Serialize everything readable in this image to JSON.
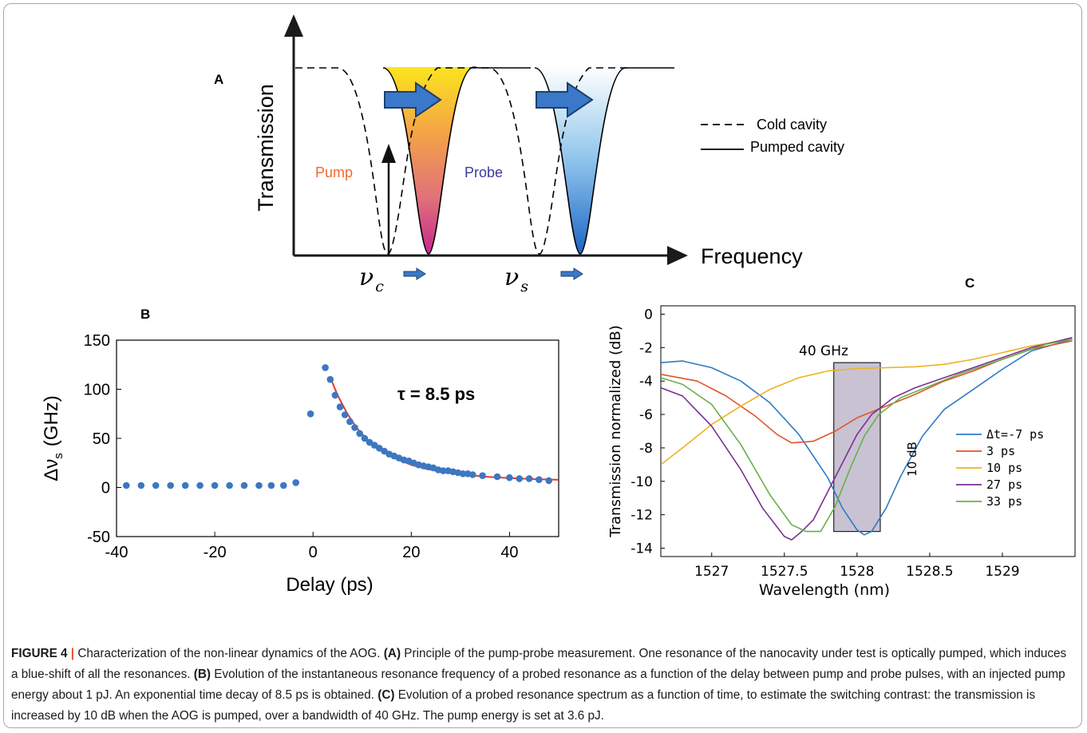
{
  "panel_a": {
    "label": "A",
    "ylabel": "Transmission",
    "xlabel": "Frequency",
    "pump_label": "Pump",
    "probe_label": "Probe",
    "nu_c_symbol": "ν",
    "nu_c_sub": "c",
    "nu_s_symbol": "ν",
    "nu_s_sub": "s",
    "legend": [
      {
        "label": "Cold cavity",
        "style": "dashed"
      },
      {
        "label": "Pumped cavity",
        "style": "solid"
      }
    ],
    "colors": {
      "pump_text": "#f26a2e",
      "probe_text": "#3a3aa0",
      "arrow": "#3a78c9"
    }
  },
  "chart_data": [
    {
      "panel": "B",
      "type": "scatter",
      "xlabel": "Delay (ps)",
      "ylabel_symbol": "Δν",
      "ylabel_sub": "s",
      "ylabel_unit": "(GHz)",
      "annotation": "τ = 8.5 ps",
      "xlim": [
        -40,
        50
      ],
      "ylim": [
        -50,
        150
      ],
      "xticks": [
        "-40",
        "-20",
        "0",
        "20",
        "40"
      ],
      "yticks": [
        "150",
        "100",
        "50",
        "0",
        "-50"
      ],
      "xtick_values": [
        -40,
        -20,
        0,
        20,
        40
      ],
      "ytick_values": [
        150,
        100,
        50,
        0,
        -50
      ],
      "series": [
        {
          "kind": "points",
          "color": "#3c77c2",
          "x": [
            -38,
            -35,
            -32,
            -29,
            -26,
            -23,
            -20,
            -17,
            -14,
            -11,
            -8.5,
            -6,
            -3.5,
            -0.5,
            2.5,
            3.5,
            4.5,
            5.5,
            6.5,
            7.5,
            8.5,
            9.5,
            10.5,
            11.5,
            12.5,
            13.5,
            14.5,
            15.5,
            16.5,
            17.5,
            18.5,
            19.5,
            20.5,
            21.5,
            22.5,
            23.5,
            24.5,
            25.5,
            26.5,
            27.5,
            28.5,
            29.5,
            30.5,
            31.5,
            32.5,
            34.5,
            37.5,
            40,
            42,
            44,
            46,
            48
          ],
          "y": [
            2,
            2,
            2,
            2,
            2,
            2,
            2,
            2,
            2,
            2,
            2,
            2,
            5,
            75,
            122,
            110,
            94,
            82,
            74,
            67,
            61,
            55,
            50,
            46,
            43,
            40,
            37,
            34,
            32,
            30,
            28,
            27,
            25,
            23,
            22,
            21,
            20,
            18,
            17,
            17,
            16,
            15,
            14,
            14,
            13,
            12,
            11,
            10,
            9,
            9,
            8,
            7
          ]
        },
        {
          "kind": "fit",
          "color": "#e23a2f",
          "x": [
            3.5,
            5,
            7,
            9,
            11,
            13,
            15,
            17,
            20,
            23,
            26,
            30,
            35,
            40,
            45,
            50
          ],
          "y": [
            112,
            94,
            75,
            60,
            49,
            40,
            34,
            29,
            23,
            19,
            16,
            13.5,
            11,
            9.5,
            8.5,
            7.8
          ]
        }
      ]
    },
    {
      "panel": "C",
      "type": "line",
      "xlabel": "Wavelength (nm)",
      "ylabel": "Transmission normalized (dB)",
      "xlim": [
        1526.65,
        1529.5
      ],
      "ylim": [
        -14.5,
        0.5
      ],
      "xticks": [
        "1527",
        "1527.5",
        "1528",
        "1528.5",
        "1529"
      ],
      "xtick_values": [
        1527,
        1527.5,
        1528,
        1528.5,
        1529
      ],
      "yticks": [
        "0",
        "-2",
        "-4",
        "-6",
        "-8",
        "-10",
        "-12",
        "-14"
      ],
      "ytick_values": [
        0,
        -2,
        -4,
        -6,
        -8,
        -10,
        -12,
        -14
      ],
      "band_label": "40 GHz",
      "band_x": [
        1527.84,
        1528.16
      ],
      "band_y": [
        -13,
        -2.9
      ],
      "contrast_label": "10 dB",
      "series": [
        {
          "name": "Δt=-7 ps",
          "color": "#2f7bc4",
          "x": [
            1526.65,
            1526.8,
            1527.0,
            1527.2,
            1527.4,
            1527.6,
            1527.8,
            1527.9,
            1528.0,
            1528.05,
            1528.1,
            1528.2,
            1528.3,
            1528.45,
            1528.6,
            1528.8,
            1529.0,
            1529.2,
            1529.48
          ],
          "y": [
            -2.9,
            -2.8,
            -3.2,
            -4.0,
            -5.3,
            -7.2,
            -9.8,
            -11.6,
            -12.9,
            -13.2,
            -13.0,
            -11.6,
            -9.7,
            -7.3,
            -5.7,
            -4.5,
            -3.3,
            -2.2,
            -1.5
          ]
        },
        {
          "name": "3 ps",
          "color": "#e0542a",
          "x": [
            1526.65,
            1526.9,
            1527.1,
            1527.3,
            1527.45,
            1527.55,
            1527.7,
            1527.85,
            1528.0,
            1528.2,
            1528.4,
            1528.6,
            1528.8,
            1529.0,
            1529.2,
            1529.48
          ],
          "y": [
            -3.6,
            -4.0,
            -4.9,
            -6.1,
            -7.2,
            -7.7,
            -7.6,
            -7.0,
            -6.2,
            -5.5,
            -4.8,
            -4.0,
            -3.4,
            -2.7,
            -2.1,
            -1.6
          ]
        },
        {
          "name": "10 ps",
          "color": "#eeb21c",
          "x": [
            1526.65,
            1526.8,
            1527.0,
            1527.2,
            1527.4,
            1527.6,
            1527.8,
            1528.0,
            1528.2,
            1528.4,
            1528.6,
            1528.8,
            1529.0,
            1529.2,
            1529.48
          ],
          "y": [
            -9.0,
            -8.0,
            -6.6,
            -5.5,
            -4.5,
            -3.8,
            -3.4,
            -3.25,
            -3.2,
            -3.15,
            -3.0,
            -2.7,
            -2.3,
            -1.9,
            -1.5
          ]
        },
        {
          "name": "27 ps",
          "color": "#7b2f93",
          "x": [
            1526.65,
            1526.8,
            1527.0,
            1527.2,
            1527.35,
            1527.5,
            1527.55,
            1527.62,
            1527.7,
            1527.8,
            1527.9,
            1528.0,
            1528.1,
            1528.25,
            1528.4,
            1528.6,
            1528.8,
            1529.0,
            1529.2,
            1529.48
          ],
          "y": [
            -4.4,
            -4.9,
            -6.7,
            -9.3,
            -11.6,
            -13.3,
            -13.5,
            -13.0,
            -12.3,
            -10.6,
            -8.9,
            -7.2,
            -6.0,
            -5.0,
            -4.4,
            -3.8,
            -3.2,
            -2.6,
            -2.0,
            -1.4
          ]
        },
        {
          "name": "33 ps",
          "color": "#67b04a",
          "x": [
            1526.65,
            1526.8,
            1527.0,
            1527.2,
            1527.4,
            1527.55,
            1527.65,
            1527.75,
            1527.85,
            1527.95,
            1528.05,
            1528.15,
            1528.3,
            1528.5,
            1528.7,
            1528.9,
            1529.1,
            1529.3,
            1529.48
          ],
          "y": [
            -3.8,
            -4.2,
            -5.4,
            -7.8,
            -10.8,
            -12.6,
            -13.0,
            -13.0,
            -11.5,
            -9.3,
            -7.3,
            -6.0,
            -5.0,
            -4.3,
            -3.6,
            -3.0,
            -2.4,
            -1.8,
            -1.5
          ]
        }
      ]
    }
  ],
  "panel_labels": {
    "b": "B",
    "c": "C"
  },
  "caption": {
    "fig_number": "FIGURE 4",
    "separator": "|",
    "intro": "Characterization of the non-linear dynamics of the AOG.",
    "a_label": "(A)",
    "a_text": "Principle of the pump-probe measurement. One resonance of the nanocavity under test is optically pumped, which induces a blue-shift of all the resonances.",
    "b_label": "(B)",
    "b_text": "Evolution of the instantaneous resonance frequency of a probed resonance as a function of the delay between pump and probe pulses, with an injected pump energy about 1 pJ. An exponential time decay of 8.5 ps is obtained.",
    "c_label": "(C)",
    "c_text": "Evolution of a probed resonance spectrum as a function of time, to estimate the switching contrast: the transmission is increased by 10 dB when the AOG is pumped, over a bandwidth of 40 GHz. The pump energy is set at 3.6 pJ."
  }
}
